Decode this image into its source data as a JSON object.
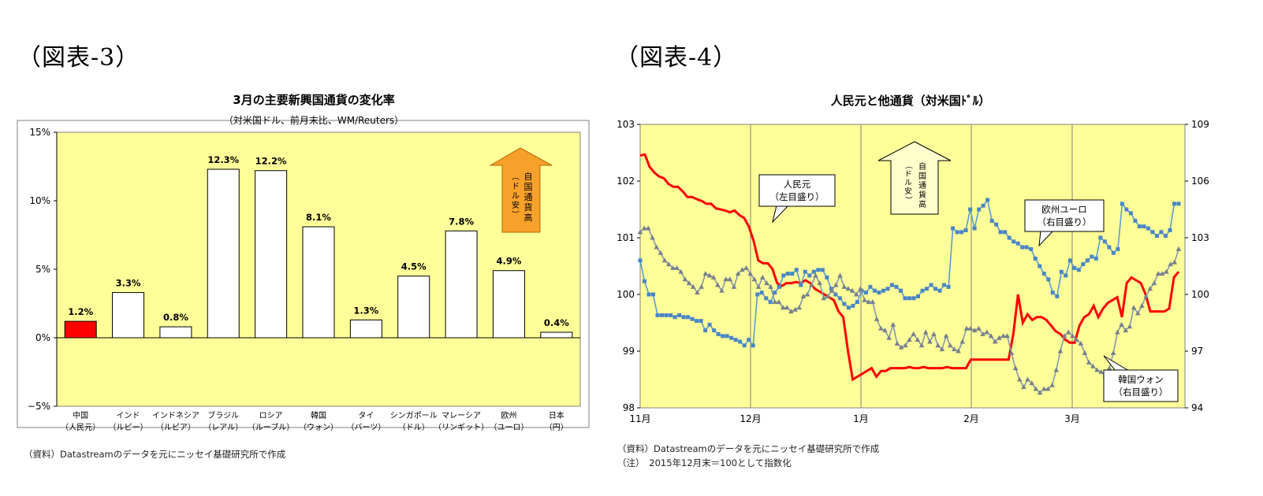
{
  "figure3": {
    "label": "（図表-3）",
    "source": "（資料）Datastreamのデータを元にニッセイ基礎研究所で作成"
  },
  "figure4": {
    "label": "（図表-4）",
    "source": "（資料）Datastreamのデータを元にニッセイ基礎研究所で作成",
    "note": "（注）　2015年12月末＝100として指数化"
  },
  "colors": {
    "plot_bg": "#ffff99",
    "bar_china": "#ff0000",
    "bar_other": "#ffffff",
    "arrow_orange": "#f7a12b",
    "rmb_line": "#ff0000",
    "euro_line": "#5b9bd5",
    "krw_line": "#7f8c9c"
  },
  "chart_data": [
    {
      "type": "bar",
      "title": "3月の主要新興国通貨の変化率",
      "subtitle": "（対米国ドル、前月末比、WM/Reuters）",
      "ylim": [
        -5,
        15
      ],
      "yticks": [
        "15%",
        "10%",
        "5%",
        "0%",
        "−5%"
      ],
      "yticks_values": [
        15,
        10,
        5,
        0,
        -5
      ],
      "grid": false,
      "categories": [
        [
          "中国",
          "（人民元）"
        ],
        [
          "インド",
          "（ルピー）"
        ],
        [
          "インドネシア",
          "（ルピア）"
        ],
        [
          "ブラジル",
          "（レアル）"
        ],
        [
          "ロシア",
          "（ルーブル）"
        ],
        [
          "韓国",
          "（ウォン）"
        ],
        [
          "タイ",
          "（バーツ）"
        ],
        [
          "シンガポール",
          "（ドル）"
        ],
        [
          "マレーシア",
          "（リンギット）"
        ],
        [
          "欧州",
          "（ユーロ）"
        ],
        [
          "日本",
          "（円）"
        ]
      ],
      "values": [
        1.2,
        3.3,
        0.8,
        12.3,
        12.2,
        8.1,
        1.3,
        4.5,
        7.8,
        4.9,
        0.4
      ],
      "value_labels": [
        "1.2%",
        "3.3%",
        "0.8%",
        "12.3%",
        "12.2%",
        "8.1%",
        "1.3%",
        "4.5%",
        "7.8%",
        "4.9%",
        "0.4%"
      ],
      "arrow_annotation": [
        "自国通貨高",
        "（ドル安）"
      ]
    },
    {
      "type": "line",
      "title": "人民元と他通貨（対米国ﾄﾞﾙ）",
      "x_ticks": [
        "11月",
        "12月",
        "1月",
        "2月",
        "3月"
      ],
      "y_left": {
        "lim": [
          98,
          103
        ],
        "ticks": [
          "103",
          "102",
          "101",
          "100",
          "99",
          "98"
        ]
      },
      "y_right": {
        "lim": [
          94,
          109
        ],
        "ticks": [
          "109",
          "106",
          "103",
          "100",
          "97",
          "94"
        ]
      },
      "arrow_annotation": [
        "自国通貨高",
        "（ドル安）"
      ],
      "series": [
        {
          "name": "人民元",
          "axis_label": "（左目盛り）",
          "axis": "left",
          "marker": "none",
          "values": [
            102.45,
            102.47,
            102.25,
            102.15,
            102.08,
            102.05,
            101.95,
            101.9,
            101.9,
            101.82,
            101.72,
            101.72,
            101.68,
            101.65,
            101.6,
            101.6,
            101.52,
            101.5,
            101.48,
            101.45,
            101.48,
            101.4,
            101.35,
            101.2,
            100.95,
            100.6,
            100.55,
            100.55,
            100.45,
            100.2,
            100.15,
            100.2,
            100.2,
            100.22,
            100.2,
            100.25,
            100.2,
            100.1,
            100.05,
            100.0,
            99.95,
            99.9,
            99.7,
            99.6,
            99.0,
            98.5,
            98.55,
            98.6,
            98.65,
            98.7,
            98.55,
            98.65,
            98.65,
            98.7,
            98.7,
            98.7,
            98.7,
            98.72,
            98.7,
            98.7,
            98.72,
            98.7,
            98.7,
            98.7,
            98.7,
            98.72,
            98.7,
            98.7,
            98.7,
            98.7,
            98.85,
            98.85,
            98.85,
            98.85,
            98.85,
            98.85,
            98.85,
            98.85,
            98.85,
            99.3,
            100.0,
            99.5,
            99.65,
            99.55,
            99.6,
            99.6,
            99.55,
            99.45,
            99.35,
            99.3,
            99.2,
            99.15,
            99.15,
            99.45,
            99.6,
            99.65,
            99.8,
            99.6,
            99.75,
            99.85,
            99.9,
            99.95,
            99.6,
            100.2,
            100.3,
            100.25,
            100.2,
            100.0,
            99.7,
            99.7,
            99.7,
            99.7,
            99.75,
            100.3,
            100.4
          ]
        },
        {
          "name": "欧州ユーロ",
          "axis_label": "（右目盛り）",
          "axis": "right",
          "marker": "square",
          "values": [
            101.8,
            100.7,
            100.0,
            100.0,
            98.9,
            98.9,
            98.9,
            98.9,
            98.8,
            98.9,
            98.8,
            98.8,
            98.7,
            98.6,
            98.6,
            98.1,
            98.4,
            98.1,
            97.9,
            97.8,
            97.8,
            97.7,
            97.6,
            97.5,
            97.3,
            97.6,
            97.3,
            100.0,
            100.1,
            99.8,
            99.6,
            100.1,
            100.4,
            101.0,
            101.1,
            101.1,
            101.3,
            100.5,
            101.2,
            101.0,
            101.2,
            101.3,
            101.3,
            100.9,
            100.3,
            100.0,
            99.8,
            99.5,
            99.3,
            99.4,
            99.6,
            100.2,
            100.1,
            100.4,
            100.2,
            100.1,
            100.2,
            100.3,
            100.5,
            100.4,
            100.2,
            99.8,
            99.8,
            99.8,
            99.9,
            100.2,
            100.3,
            100.5,
            100.3,
            100.2,
            100.5,
            100.4,
            103.5,
            103.3,
            103.3,
            103.4,
            104.5,
            103.5,
            104.5,
            104.7,
            105.0,
            103.9,
            103.7,
            103.3,
            103.3,
            103.0,
            102.8,
            102.7,
            102.5,
            102.5,
            102.4,
            101.9,
            101.5,
            101.1,
            100.8,
            100.1,
            99.9,
            101.2,
            101.0,
            101.8,
            101.4,
            101.3,
            101.6,
            101.8,
            102.0,
            101.9,
            103.0,
            102.8,
            102.5,
            102.2,
            102.4,
            104.8,
            104.5,
            104.3,
            103.9,
            103.6,
            103.6,
            103.5,
            103.3,
            103.1,
            103.3,
            103.1,
            103.4,
            104.8,
            104.8
          ]
        },
        {
          "name": "韓国ウォン",
          "axis_label": "（右目盛り）",
          "axis": "right",
          "marker": "triangle",
          "values": [
            103.3,
            103.5,
            103.5,
            103.0,
            102.5,
            102.2,
            101.8,
            101.6,
            101.4,
            101.4,
            101.2,
            100.8,
            100.6,
            100.4,
            100.1,
            100.4,
            101.1,
            101.0,
            100.9,
            100.5,
            100.2,
            100.8,
            100.8,
            100.4,
            101.1,
            101.3,
            101.4,
            101.1,
            100.8,
            100.4,
            100.9,
            100.6,
            100.4,
            99.6,
            99.6,
            99.3,
            99.3,
            99.1,
            99.2,
            99.3,
            99.9,
            100.0,
            100.5,
            101.0,
            100.6,
            99.8,
            99.9,
            100.2,
            100.5,
            101.0,
            100.4,
            100.3,
            100.2,
            100.0,
            100.3,
            99.7,
            99.6,
            99.6,
            98.7,
            98.2,
            98.1,
            97.7,
            98.4,
            97.4,
            97.2,
            97.3,
            97.6,
            97.9,
            97.6,
            97.3,
            98.0,
            97.5,
            97.9,
            97.3,
            97.1,
            97.8,
            97.3,
            97.1,
            97.0,
            97.5,
            98.2,
            98.2,
            98.1,
            98.2,
            97.9,
            98.0,
            97.8,
            97.5,
            97.7,
            97.8,
            97.8,
            96.9,
            96.1,
            95.5,
            95.1,
            95.5,
            95.3,
            95.0,
            94.8,
            95.0,
            95.0,
            95.2,
            96.0,
            97.0,
            97.8,
            98.0,
            97.8,
            97.6,
            97.4,
            96.9,
            96.4,
            96.2,
            96.0,
            95.9,
            95.7,
            96.1,
            96.9,
            98.0,
            98.4,
            98.1,
            98.3,
            99.3,
            99.0,
            99.4,
            99.9,
            100.3,
            100.6,
            101.1,
            101.1,
            101.2,
            101.6,
            101.7,
            102.4
          ]
        }
      ]
    }
  ]
}
